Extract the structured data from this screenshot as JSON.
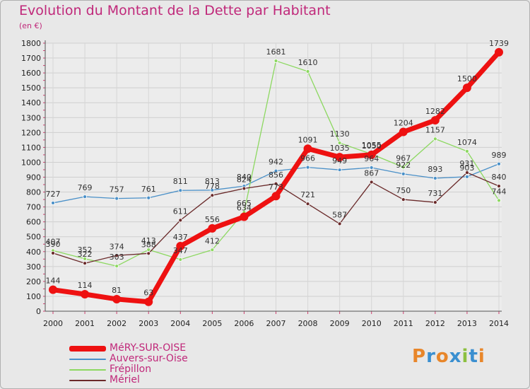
{
  "title": "Evolution du Montant de la Dette par Habitant",
  "subtitle": "(en €)",
  "logo": {
    "text": "Proxiti",
    "colors": [
      "#e8862a",
      "#3a8fd0",
      "#e8862a",
      "#3a8fd0",
      "#8cc040",
      "#3a8fd0",
      "#e8862a"
    ]
  },
  "chart_data": {
    "type": "line",
    "x": [
      "2000",
      "2001",
      "2002",
      "2003",
      "2004",
      "2005",
      "2006",
      "2007",
      "2008",
      "2009",
      "2010",
      "2011",
      "2012",
      "2013",
      "2014"
    ],
    "ylim": [
      0,
      1800
    ],
    "yticks": [
      0,
      100,
      200,
      300,
      400,
      500,
      600,
      700,
      800,
      900,
      1000,
      1100,
      1200,
      1300,
      1400,
      1500,
      1600,
      1700,
      1800
    ],
    "grid": true,
    "legend_position": "bottom",
    "series": [
      {
        "name": "Auvers-sur-Oise",
        "color": "#4a90c8",
        "width": 1.3,
        "marker": 5,
        "values": [
          727,
          769,
          757,
          761,
          811,
          813,
          840,
          942,
          966,
          949,
          964,
          922,
          893,
          903,
          989
        ],
        "labels": [
          "727",
          "769",
          "757",
          "761",
          "811",
          "813",
          "840",
          "942",
          "966",
          "949",
          "964",
          "922",
          "893",
          "903",
          "989"
        ]
      },
      {
        "name": "Frépillon",
        "color": "#8cd860",
        "width": 1.3,
        "marker": 5,
        "values": [
          407,
          352,
          303,
          413,
          347,
          412,
          665,
          1681,
          1610,
          1130,
          1055,
          967,
          1157,
          1074,
          744
        ],
        "labels": [
          "407",
          "352",
          "303",
          "413",
          "347",
          "412",
          "665",
          "1681",
          "1610",
          "1130",
          "1055",
          "967",
          "1157",
          "1074",
          "744"
        ]
      },
      {
        "name": "Mériel",
        "color": "#6a2a2a",
        "width": 1.3,
        "marker": 5,
        "values": [
          390,
          322,
          374,
          388,
          611,
          778,
          824,
          856,
          721,
          587,
          867,
          750,
          731,
          931,
          840
        ],
        "labels": [
          "390",
          "322",
          "374",
          "388",
          "611",
          "778",
          "824",
          "856",
          "721",
          "587",
          "867",
          "750",
          "731",
          "931",
          "840"
        ]
      },
      {
        "name": "MéRY-SUR-OISE",
        "color": "#ee1111",
        "width": 7,
        "marker": 12,
        "values": [
          144,
          114,
          81,
          63,
          437,
          556,
          634,
          773,
          1091,
          1035,
          1050,
          1204,
          1282,
          1500,
          1739
        ],
        "labels": [
          "144",
          "114",
          "81",
          "63",
          "437",
          "556",
          "634",
          "773",
          "1091",
          "1035",
          "1050",
          "1204",
          "1282",
          "1500",
          "1739"
        ]
      }
    ],
    "legend_order": [
      3,
      0,
      1,
      2
    ]
  }
}
